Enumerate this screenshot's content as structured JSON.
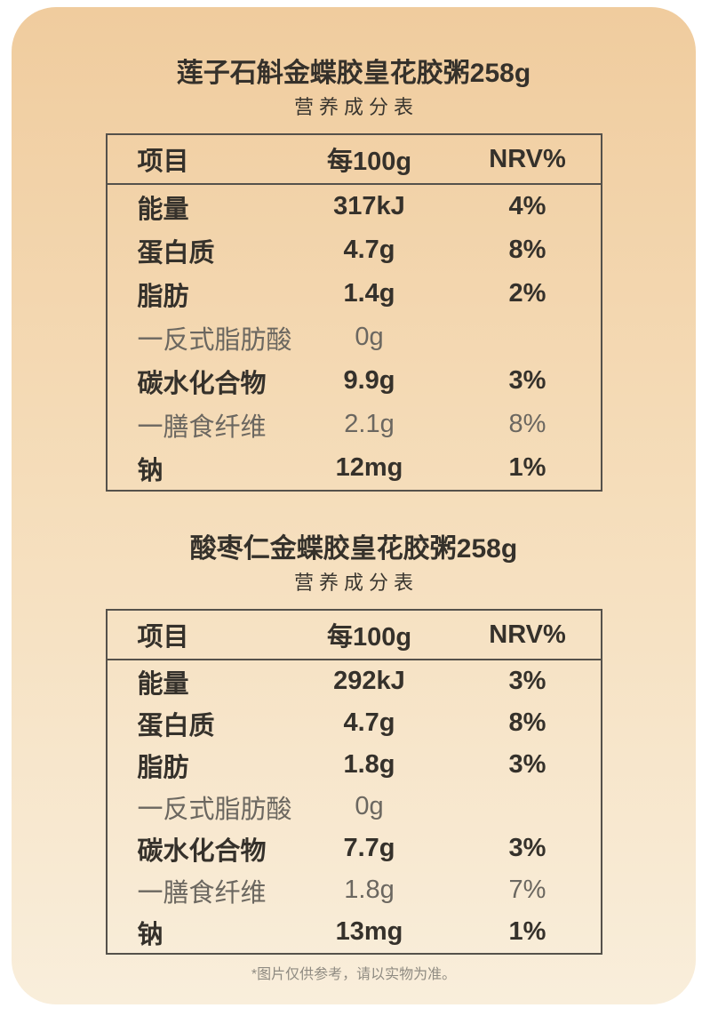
{
  "colors": {
    "background_top": "#F0CC9E",
    "background_middle": "#F5DDBA",
    "background_bottom": "#F9EEDB",
    "page_behind_card": "#FFFFFF",
    "text_strong": "#35312B",
    "text_light": "#6B6760",
    "table_border": "#55514B",
    "footnote_text": "#8F8B82"
  },
  "footnote": "*图片仅供参考，请以实物为准。",
  "tables": [
    {
      "title": "莲子石斛金蝶胶皇花胶粥258g",
      "subtitle": "营养成分表",
      "headers": {
        "item": "项目",
        "amount": "每100g",
        "nrv": "NRV%"
      },
      "rows": [
        {
          "label": "能量",
          "value": "317kJ",
          "nrv": "4%",
          "emphasis": true
        },
        {
          "label": "蛋白质",
          "value": "4.7g",
          "nrv": "8%",
          "emphasis": true
        },
        {
          "label": "脂肪",
          "value": "1.4g",
          "nrv": "2%",
          "emphasis": true
        },
        {
          "label": "一反式脂肪酸",
          "value": "0g",
          "nrv": "",
          "emphasis": false
        },
        {
          "label": "碳水化合物",
          "value": "9.9g",
          "nrv": "3%",
          "emphasis": true
        },
        {
          "label": "一膳食纤维",
          "value": "2.1g",
          "nrv": "8%",
          "emphasis": false
        },
        {
          "label": "钠",
          "value": "12mg",
          "nrv": "1%",
          "emphasis": true
        }
      ]
    },
    {
      "title": "酸枣仁金蝶胶皇花胶粥258g",
      "subtitle": "营养成分表",
      "headers": {
        "item": "项目",
        "amount": "每100g",
        "nrv": "NRV%"
      },
      "rows": [
        {
          "label": "能量",
          "value": "292kJ",
          "nrv": "3%",
          "emphasis": true
        },
        {
          "label": "蛋白质",
          "value": "4.7g",
          "nrv": "8%",
          "emphasis": true
        },
        {
          "label": "脂肪",
          "value": "1.8g",
          "nrv": "3%",
          "emphasis": true
        },
        {
          "label": "一反式脂肪酸",
          "value": "0g",
          "nrv": "",
          "emphasis": false
        },
        {
          "label": "碳水化合物",
          "value": "7.7g",
          "nrv": "3%",
          "emphasis": true
        },
        {
          "label": "一膳食纤维",
          "value": "1.8g",
          "nrv": "7%",
          "emphasis": false
        },
        {
          "label": "钠",
          "value": "13mg",
          "nrv": "1%",
          "emphasis": true
        }
      ]
    }
  ]
}
